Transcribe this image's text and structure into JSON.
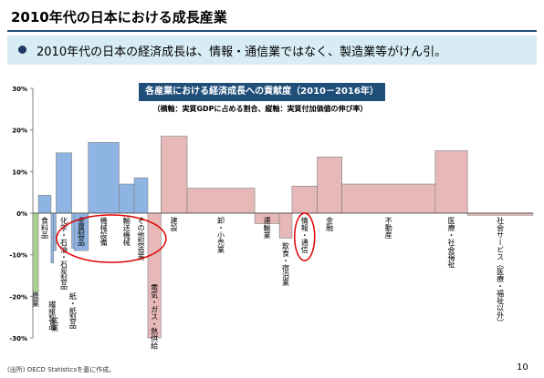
{
  "page": {
    "title": "2010年代の日本における成長産業",
    "banner": "2010年代の日本の経済成長は、情報・通信業ではなく、製造業等がけん引。",
    "source": "(出所) OECD Statisticsを基に作成。",
    "page_number": "10"
  },
  "colors": {
    "title_rule": "#1f4e79",
    "banner_bg": "#d7ecf4",
    "agriculture": "#a9d18e",
    "manufacturing": "#8eb4e3",
    "services": "#e6b9b8",
    "bar_border": "#7f7f7f",
    "highlight": "#e00000"
  },
  "chart_data": {
    "type": "bar",
    "title": "各産業における経済成長への貢献度（2010－2016年）",
    "subtitle": "（横軸：実質GDPに占める割合、縦軸：実質付加価値の伸び率）",
    "ylim": [
      -30,
      30
    ],
    "y_ticks": [
      "30%",
      "20%",
      "10%",
      "0%",
      "-10%",
      "-20%",
      "-30%"
    ],
    "grid": false,
    "legend": "none",
    "categories": [
      "農業",
      "食料品",
      "繊維製品",
      "鉱業",
      "化学・石油・石炭製品",
      "紙・紙製品",
      "金属製品",
      "機械設備",
      "輸送機械",
      "その他製造業",
      "電気・ガス・熱供給",
      "建設",
      "卸・小売業",
      "運輸業",
      "飲食・宿泊業",
      "情報・通信",
      "金融",
      "不動産",
      "医療・社会福祉",
      "社会サービス（医療・福祉以外）"
    ],
    "bars": [
      {
        "label": "農業",
        "group": "agriculture",
        "share": 1.1,
        "value": -19
      },
      {
        "label": "食料品",
        "group": "manufacturing",
        "share": 2.5,
        "value": 4.3
      },
      {
        "label": "繊維製品",
        "group": "manufacturing",
        "share": 0.5,
        "value": -12
      },
      {
        "label": "鉱業",
        "group": "manufacturing",
        "share": 0.5,
        "value": -9
      },
      {
        "label": "化学・石油・石炭製品",
        "group": "manufacturing",
        "share": 3.1,
        "value": 14.5
      },
      {
        "label": "紙・紙製品",
        "group": "manufacturing",
        "share": 0.5,
        "value": -8.5
      },
      {
        "label": "金属製品",
        "group": "manufacturing",
        "share": 2.8,
        "value": -9
      },
      {
        "label": "機械設備",
        "group": "manufacturing",
        "share": 6.1,
        "value": 17
      },
      {
        "label": "輸送機械",
        "group": "manufacturing",
        "share": 3.0,
        "value": 7
      },
      {
        "label": "その他製造業",
        "group": "manufacturing",
        "share": 2.7,
        "value": 8.5
      },
      {
        "label": "電気・ガス・熱供給",
        "group": "services",
        "share": 2.6,
        "value": -30
      },
      {
        "label": "建設",
        "group": "services",
        "share": 5.2,
        "value": 18.5
      },
      {
        "label": "卸・小売業",
        "group": "services",
        "share": 13.4,
        "value": 6
      },
      {
        "label": "運輸業",
        "group": "services",
        "share": 4.9,
        "value": -2.5
      },
      {
        "label": "飲食・宿泊業",
        "group": "services",
        "share": 2.5,
        "value": -6
      },
      {
        "label": "情報・通信",
        "group": "services",
        "share": 5.0,
        "value": 6.5
      },
      {
        "label": "金融",
        "group": "services",
        "share": 4.9,
        "value": 13.5
      },
      {
        "label": "不動産",
        "group": "services",
        "share": 18.5,
        "value": 7
      },
      {
        "label": "医療・社会福祉",
        "group": "services",
        "share": 6.4,
        "value": 15
      },
      {
        "label": "社会サービス（医療・福祉以外）",
        "group": "services",
        "share": 13.0,
        "value": -0.5
      }
    ],
    "highlighted": [
      "機械設備・輸送機械",
      "情報・通信"
    ]
  }
}
